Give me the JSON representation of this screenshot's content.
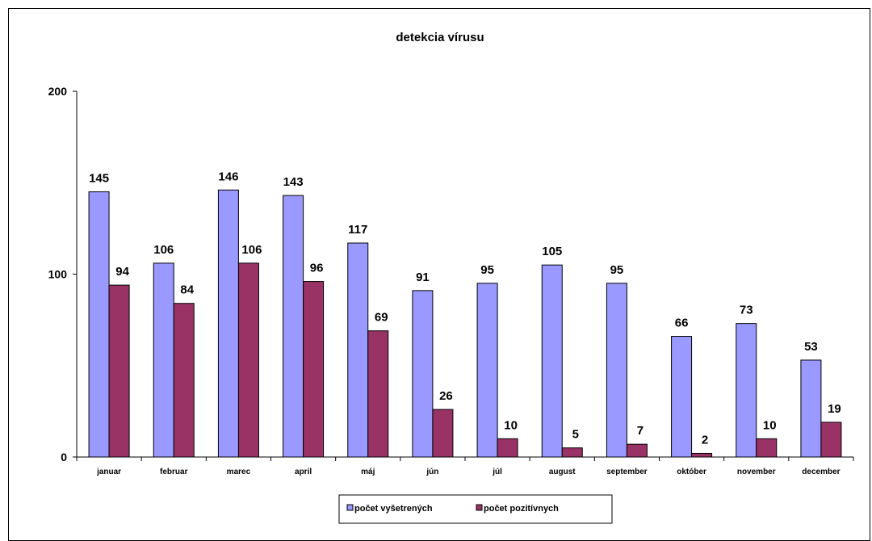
{
  "chart_data": {
    "type": "bar",
    "title": "detekcia vírusu",
    "xlabel": "",
    "ylabel": "",
    "ylim": [
      0,
      200
    ],
    "yticks": [
      "0",
      "100",
      "200"
    ],
    "grid": false,
    "legend_position": "bottom",
    "categories": [
      "januar",
      "februar",
      "marec",
      "april",
      "máj",
      "jún",
      "júl",
      "august",
      "september",
      "október",
      "november",
      "december"
    ],
    "series": [
      {
        "name": "počet vyšetrených",
        "color": "#9999ff",
        "values": [
          145,
          106,
          146,
          143,
          117,
          91,
          95,
          105,
          95,
          66,
          73,
          53
        ]
      },
      {
        "name": "počet pozitívnych",
        "color": "#993366",
        "values": [
          94,
          84,
          106,
          96,
          69,
          26,
          10,
          5,
          7,
          2,
          10,
          19
        ]
      }
    ]
  }
}
